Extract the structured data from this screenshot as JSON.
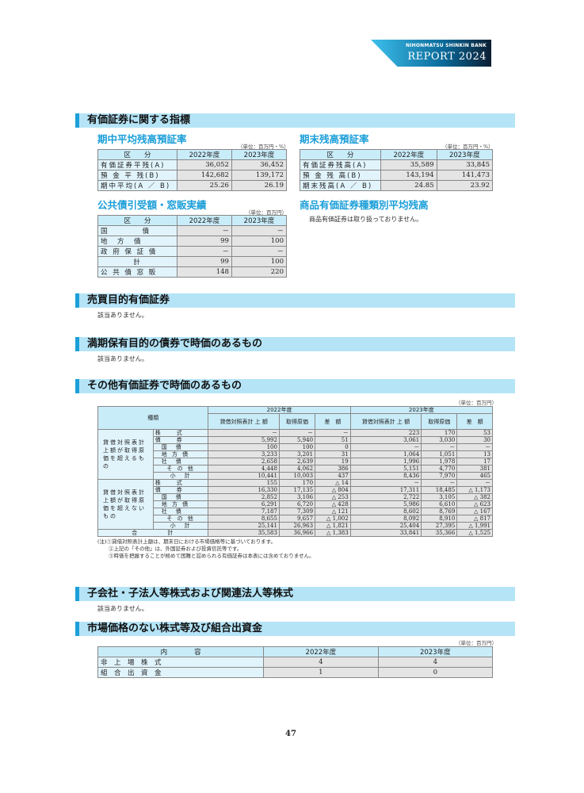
{
  "logo": {
    "bank": "NIHONMATSU SHINKIN BANK",
    "report": "REPORT 2024"
  },
  "s1": {
    "title": "有価証券に関する指標",
    "avg": {
      "title": "期中平均残高預証率",
      "unit": "（単位：百万円・%）",
      "head": [
        "区　　分",
        "2022年度",
        "2023年度"
      ],
      "rows": [
        [
          "有価証券平残(A)",
          "36,052",
          "36,452"
        ],
        [
          "預 金 平 残(B)",
          "142,682",
          "139,172"
        ],
        [
          "期中平均(A ／ B)",
          "25.26",
          "26.19"
        ]
      ]
    },
    "end": {
      "title": "期末残高預証率",
      "unit": "（単位：百万円・%）",
      "head": [
        "区　　分",
        "2022年度",
        "2023年度"
      ],
      "rows": [
        [
          "有価証券残高(A)",
          "35,589",
          "33,845"
        ],
        [
          "預 金 残 高(B)",
          "143,194",
          "141,473"
        ],
        [
          "期末残高(A ／ B)",
          "24.85",
          "23.92"
        ]
      ]
    },
    "pub": {
      "title": "公共債引受額・窓販実績",
      "unit": "（単位：百万円）",
      "head": [
        "区　　分",
        "2022年度",
        "2023年度"
      ],
      "rows": [
        [
          "国　　　　債",
          "－",
          "－"
        ],
        [
          "地　方　債",
          "99",
          "100"
        ],
        [
          "政 府 保 証 債",
          "－",
          "－"
        ],
        [
          "計",
          "99",
          "100"
        ],
        [
          "公 共 債 窓 販",
          "148",
          "220"
        ]
      ]
    },
    "prod": {
      "title": "商品有価証券種類別平均残高",
      "text": "商品有価証券は取り扱っておりません。"
    }
  },
  "s2": {
    "title": "売買目的有価証券",
    "text": "該当ありません。"
  },
  "s3": {
    "title": "満期保有目的の債券で時価のあるもの",
    "text": "該当ありません。"
  },
  "s4": {
    "title": "その他有価証券で時価のあるもの",
    "unit": "（単位：百万円）",
    "head": {
      "kind": "種類",
      "y22": "2022年度",
      "y23": "2023年度",
      "bs": "貸借対照表計 上 額",
      "cost": "取得原価",
      "diff": "差　額"
    },
    "groups": [
      {
        "label": "貸借対照表計上額が取得原価を超えるもの",
        "rows": [
          [
            "株　　式",
            false,
            "－",
            "－",
            "－",
            "223",
            "170",
            "53"
          ],
          [
            "債　　券",
            false,
            "5,992",
            "5,940",
            "51",
            "3,061",
            "3,030",
            "30"
          ],
          [
            "国　債",
            true,
            "100",
            "100",
            "0",
            "－",
            "－",
            "－"
          ],
          [
            "地 方 債",
            true,
            "3,233",
            "3,201",
            "31",
            "1,064",
            "1,051",
            "13"
          ],
          [
            "社　債",
            true,
            "2,658",
            "2,639",
            "19",
            "1,996",
            "1,978",
            "17"
          ],
          [
            "そ の 他",
            false,
            "4,448",
            "4,062",
            "386",
            "5,151",
            "4,770",
            "381"
          ],
          [
            "小　計",
            false,
            "10,441",
            "10,003",
            "437",
            "8,436",
            "7,970",
            "465"
          ]
        ]
      },
      {
        "label": "貸借対照表計上額が取得原価を超えないもの",
        "rows": [
          [
            "株　　式",
            false,
            "155",
            "170",
            "△ 14",
            "－",
            "－",
            "－"
          ],
          [
            "債　　券",
            false,
            "16,330",
            "17,135",
            "△ 804",
            "17,311",
            "18,485",
            "△ 1,173"
          ],
          [
            "国　債",
            true,
            "2,852",
            "3,106",
            "△ 253",
            "2,722",
            "3,105",
            "△ 382"
          ],
          [
            "地 方 債",
            true,
            "6,291",
            "6,720",
            "△ 428",
            "5,986",
            "6,610",
            "△ 623"
          ],
          [
            "社　債",
            true,
            "7,187",
            "7,309",
            "△ 121",
            "8,602",
            "8,769",
            "△ 167"
          ],
          [
            "そ の 他",
            false,
            "8,655",
            "9,657",
            "△ 1,002",
            "8,092",
            "8,910",
            "△ 817"
          ],
          [
            "小　計",
            false,
            "25,141",
            "26,963",
            "△ 1,821",
            "25,404",
            "27,395",
            "△ 1,991"
          ]
        ]
      }
    ],
    "total": [
      "合　　　　計",
      "35,583",
      "36,966",
      "△ 1,383",
      "33,841",
      "35,366",
      "△ 1,525"
    ],
    "notes": [
      "(注)①貸借対照表計上額は、期末日における市場価格等に基づいております。",
      "②上記の「その他」は、外国証券および投資信託等です。",
      "③時価を把握することが極めて困難と認められる有価証券は本表には含めておりません。"
    ]
  },
  "s5": {
    "title": "子会社・子法人等株式および関連法人等株式",
    "text": "該当ありません。"
  },
  "s6": {
    "title": "市場価格のない株式等及び組合出資金",
    "unit": "（単位：百万円）",
    "head": [
      "内　　　　容",
      "2022年度",
      "2023年度"
    ],
    "rows": [
      [
        "非　上　場　株　式",
        "4",
        "4"
      ],
      [
        "組　合　出　資　金",
        "1",
        "0"
      ]
    ]
  },
  "page": "47"
}
